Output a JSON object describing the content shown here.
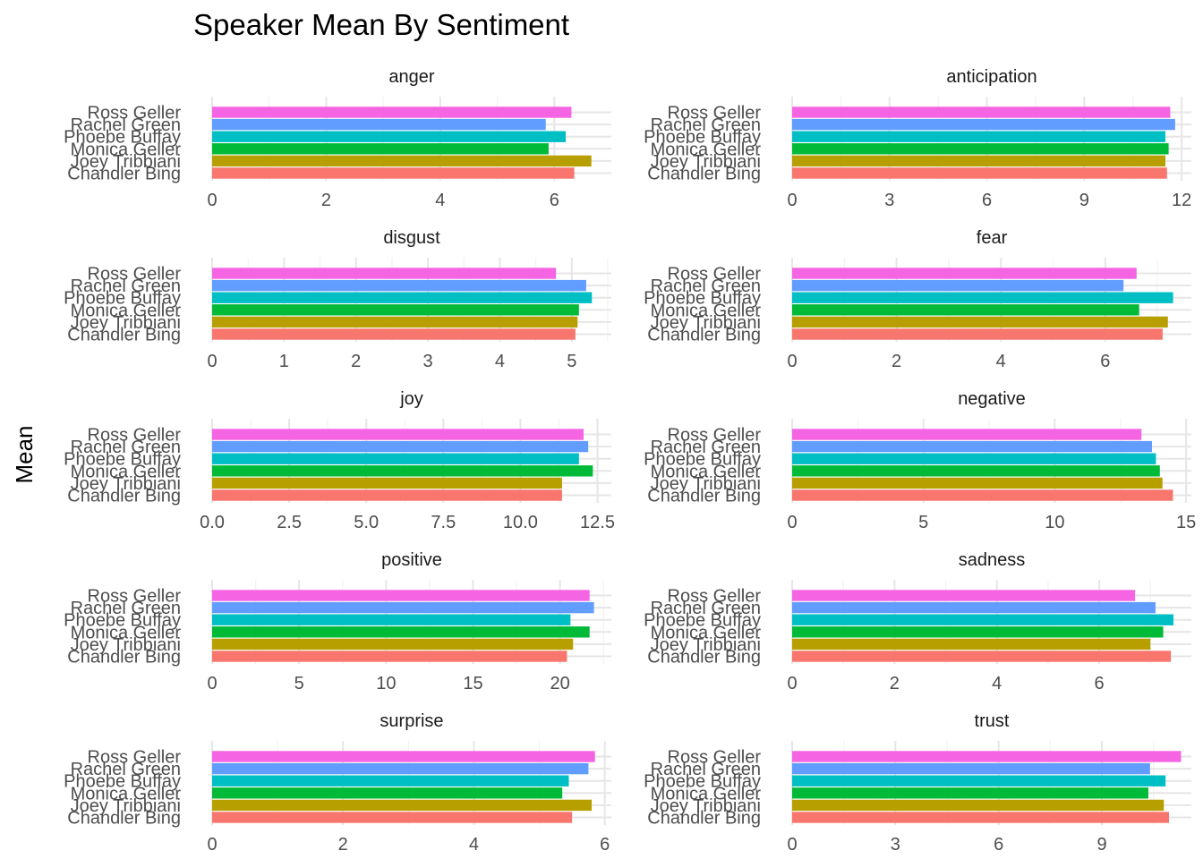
{
  "chart_data": {
    "type": "bar",
    "orientation": "horizontal",
    "title": "Speaker Mean By Sentiment",
    "xlabel": "",
    "ylabel": "Mean",
    "grid": true,
    "legend": "none",
    "categories": [
      "Chandler Bing",
      "Joey Tribbiani",
      "Monica Geller",
      "Phoebe Buffay",
      "Rachel Green",
      "Ross Geller"
    ],
    "colors": [
      "#F8766D",
      "#B79F00",
      "#00BA38",
      "#00BFC4",
      "#619CFF",
      "#F564E3"
    ],
    "panels": [
      {
        "name": "anger",
        "values": [
          6.35,
          6.65,
          5.9,
          6.2,
          5.85,
          6.3
        ],
        "ticks": [
          0,
          2,
          4,
          6
        ],
        "xlim": [
          0,
          7
        ]
      },
      {
        "name": "anticipation",
        "values": [
          11.55,
          11.5,
          11.6,
          11.5,
          11.8,
          11.65
        ],
        "ticks": [
          0,
          3,
          6,
          9,
          12
        ],
        "xlim": [
          0,
          12.3
        ]
      },
      {
        "name": "disgust",
        "values": [
          5.05,
          5.08,
          5.1,
          5.28,
          5.2,
          4.78
        ],
        "ticks": [
          0,
          1,
          2,
          3,
          4,
          5
        ],
        "xlim": [
          0,
          5.55
        ]
      },
      {
        "name": "fear",
        "values": [
          7.1,
          7.2,
          6.65,
          7.3,
          6.35,
          6.6
        ],
        "ticks": [
          0,
          2,
          4,
          6
        ],
        "xlim": [
          0,
          7.65
        ]
      },
      {
        "name": "joy",
        "values": [
          11.35,
          11.35,
          12.35,
          11.9,
          12.2,
          12.05
        ],
        "ticks": [
          0.0,
          2.5,
          5.0,
          7.5,
          10.0,
          12.5
        ],
        "xlim": [
          0,
          12.95
        ]
      },
      {
        "name": "negative",
        "values": [
          14.5,
          14.1,
          14.0,
          13.85,
          13.7,
          13.3
        ],
        "ticks": [
          0,
          5,
          10,
          15
        ],
        "xlim": [
          0,
          15.2
        ]
      },
      {
        "name": "positive",
        "values": [
          20.4,
          20.75,
          21.7,
          20.6,
          21.95,
          21.7
        ],
        "ticks": [
          0,
          5,
          10,
          15,
          20
        ],
        "xlim": [
          0,
          22.95
        ]
      },
      {
        "name": "sadness",
        "values": [
          7.4,
          7.0,
          7.25,
          7.45,
          7.1,
          6.7
        ],
        "ticks": [
          0,
          2,
          4,
          6
        ],
        "xlim": [
          0,
          7.8
        ]
      },
      {
        "name": "surprise",
        "values": [
          5.5,
          5.8,
          5.35,
          5.45,
          5.75,
          5.85
        ],
        "ticks": [
          0,
          2,
          4,
          6
        ],
        "xlim": [
          0,
          6.1
        ]
      },
      {
        "name": "trust",
        "values": [
          10.95,
          10.8,
          10.35,
          10.85,
          10.4,
          11.3
        ],
        "ticks": [
          0,
          3,
          6,
          9
        ],
        "xlim": [
          0,
          11.6
        ]
      }
    ]
  }
}
